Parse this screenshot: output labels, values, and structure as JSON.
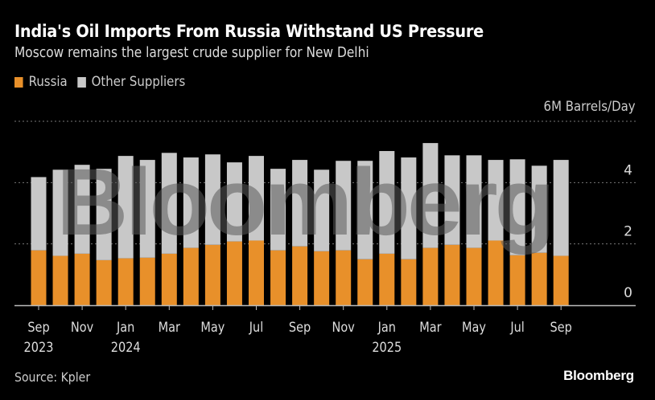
{
  "header": {
    "title": "India's Oil Imports From Russia Withstand US Pressure",
    "subtitle": "Moscow remains the largest crude supplier for New Delhi"
  },
  "footer": {
    "source": "Source: Kpler",
    "brand": "Bloomberg"
  },
  "watermark": "Bloomberg",
  "chart_data": {
    "type": "bar",
    "stacked": true,
    "title": "India's Oil Imports From Russia Withstand US Pressure",
    "subtitle": "Moscow remains the largest crude supplier for New Delhi",
    "ylabel": "6M Barrels/Day",
    "unit_label": "6M Barrels/Day",
    "xlabel": "",
    "ylim": [
      0,
      6
    ],
    "yticks": [
      0,
      2,
      4
    ],
    "grid": true,
    "legend_position": "top-left",
    "categories": [
      "Sep 2023",
      "Oct 2023",
      "Nov 2023",
      "Dec 2023",
      "Jan 2024",
      "Feb 2024",
      "Mar 2024",
      "Apr 2024",
      "May 2024",
      "Jun 2024",
      "Jul 2024",
      "Aug 2024",
      "Sep 2024",
      "Oct 2024",
      "Nov 2024",
      "Dec 2024",
      "Jan 2025",
      "Feb 2025",
      "Mar 2025",
      "Apr 2025",
      "May 2025",
      "Jun 2025",
      "Jul 2025",
      "Aug 2025",
      "Sep 2025"
    ],
    "xtick_labels": [
      {
        "index": 0,
        "month": "Sep",
        "year": "2023"
      },
      {
        "index": 2,
        "month": "Nov",
        "year": ""
      },
      {
        "index": 4,
        "month": "Jan",
        "year": "2024"
      },
      {
        "index": 6,
        "month": "Mar",
        "year": ""
      },
      {
        "index": 8,
        "month": "May",
        "year": ""
      },
      {
        "index": 10,
        "month": "Jul",
        "year": ""
      },
      {
        "index": 12,
        "month": "Sep",
        "year": ""
      },
      {
        "index": 14,
        "month": "Nov",
        "year": ""
      },
      {
        "index": 16,
        "month": "Jan",
        "year": "2025"
      },
      {
        "index": 18,
        "month": "Mar",
        "year": ""
      },
      {
        "index": 20,
        "month": "May",
        "year": ""
      },
      {
        "index": 22,
        "month": "Jul",
        "year": ""
      },
      {
        "index": 24,
        "month": "Sep",
        "year": ""
      }
    ],
    "series": [
      {
        "name": "Russia",
        "color": "#e8902a",
        "values": [
          1.79,
          1.61,
          1.68,
          1.47,
          1.53,
          1.55,
          1.68,
          1.87,
          1.97,
          2.08,
          2.11,
          1.79,
          1.92,
          1.76,
          1.79,
          1.5,
          1.68,
          1.5,
          1.87,
          1.97,
          1.87,
          2.11,
          1.63,
          1.71,
          1.61
        ]
      },
      {
        "name": "Other Suppliers",
        "color": "#c8c8c8",
        "values": [
          2.39,
          2.81,
          2.9,
          2.98,
          3.34,
          3.19,
          3.29,
          2.95,
          2.95,
          2.58,
          2.76,
          2.66,
          2.82,
          2.66,
          2.92,
          3.21,
          3.35,
          3.32,
          3.42,
          2.92,
          3.02,
          2.63,
          3.13,
          2.84,
          3.13
        ]
      }
    ]
  }
}
